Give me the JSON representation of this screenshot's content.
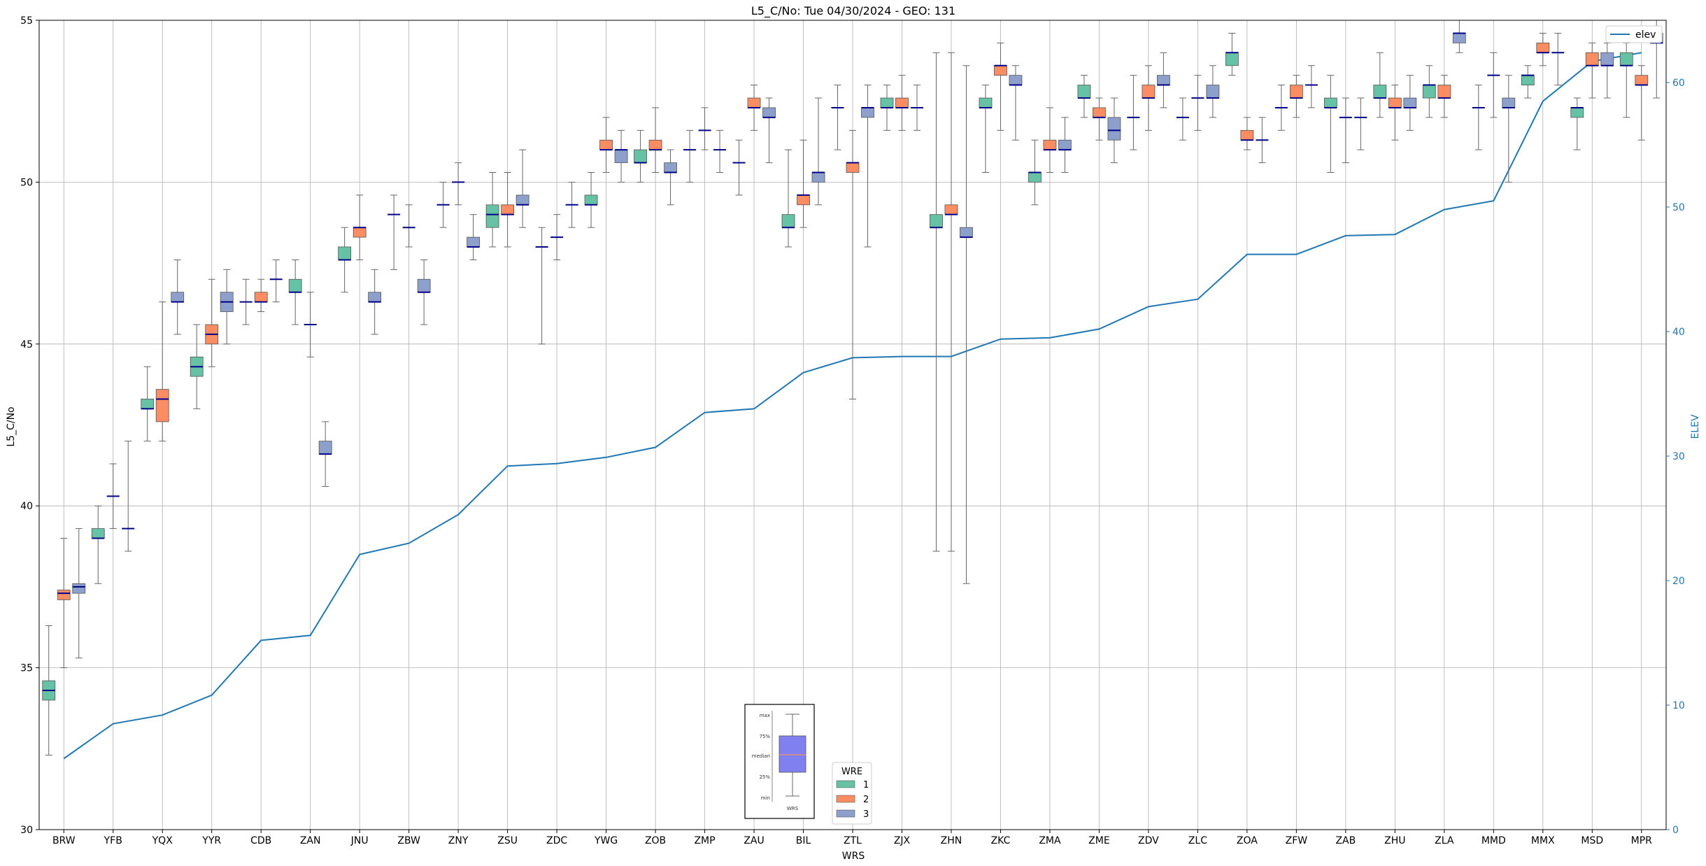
{
  "chart_data": {
    "type": "box",
    "title": "L5_C/No: Tue 04/30/2024 - GEO: 131",
    "xlabel": "WRS",
    "ylabel": "L5_C/No",
    "ylabel_right": "ELEV",
    "ylim": [
      30,
      55
    ],
    "ylim_right": [
      0,
      65
    ],
    "yticks": [
      "30",
      "35",
      "40",
      "45",
      "50",
      "55"
    ],
    "yticks_right": [
      "0",
      "10",
      "20",
      "30",
      "40",
      "50",
      "60"
    ],
    "grid": true,
    "categories": [
      "BRW",
      "YFB",
      "YQX",
      "YYR",
      "CDB",
      "ZAN",
      "JNU",
      "ZBW",
      "ZNY",
      "ZSU",
      "ZDC",
      "YWG",
      "ZOB",
      "ZMP",
      "ZAU",
      "BIL",
      "ZTL",
      "ZJX",
      "ZHN",
      "ZKC",
      "ZMA",
      "ZME",
      "ZDV",
      "ZLC",
      "ZOA",
      "ZFW",
      "ZAB",
      "ZHU",
      "ZLA",
      "MMD",
      "MMX",
      "MSD",
      "MPR"
    ],
    "wre_colors": {
      "1": "#66c2a5",
      "2": "#fc8d62",
      "3": "#8da0cb"
    },
    "legend": {
      "title": "WRE",
      "labels": [
        "1",
        "2",
        "3"
      ],
      "position": "bottom-center"
    },
    "legend_line": {
      "label": "elev",
      "position": "top-right"
    },
    "line_series": {
      "name": "elev",
      "color": "#1f77b4",
      "values": [
        5.7,
        8.5,
        9.2,
        10.8,
        15.2,
        15.6,
        22.1,
        23.0,
        25.3,
        29.2,
        29.4,
        29.9,
        30.7,
        33.5,
        33.8,
        36.7,
        37.9,
        38.0,
        38.0,
        39.4,
        39.5,
        40.2,
        42.0,
        42.6,
        46.2,
        46.2,
        47.7,
        47.8,
        49.8,
        50.5,
        58.5,
        61.7,
        62.4
      ]
    },
    "boxes": [
      {
        "wrs": "BRW",
        "wre": 1,
        "min": 32.3,
        "q1": 34.0,
        "median": 34.3,
        "q3": 34.6,
        "max": 36.3
      },
      {
        "wrs": "BRW",
        "wre": 2,
        "min": 35.0,
        "q1": 37.1,
        "median": 37.3,
        "q3": 37.4,
        "max": 39.0
      },
      {
        "wrs": "BRW",
        "wre": 3,
        "min": 35.3,
        "q1": 37.3,
        "median": 37.5,
        "q3": 37.6,
        "max": 39.3
      },
      {
        "wrs": "YFB",
        "wre": 1,
        "min": 37.6,
        "q1": 39.0,
        "median": 39.0,
        "q3": 39.3,
        "max": 40.0
      },
      {
        "wrs": "YFB",
        "wre": 2,
        "min": 39.3,
        "q1": 40.3,
        "median": 40.3,
        "q3": 40.3,
        "max": 41.3
      },
      {
        "wrs": "YFB",
        "wre": 3,
        "min": 38.6,
        "q1": 39.3,
        "median": 39.3,
        "q3": 39.3,
        "max": 42.0
      },
      {
        "wrs": "YQX",
        "wre": 1,
        "min": 42.0,
        "q1": 43.0,
        "median": 43.0,
        "q3": 43.3,
        "max": 44.3
      },
      {
        "wrs": "YQX",
        "wre": 2,
        "min": 42.0,
        "q1": 42.6,
        "median": 43.3,
        "q3": 43.6,
        "max": 46.3
      },
      {
        "wrs": "YQX",
        "wre": 3,
        "min": 45.3,
        "q1": 46.3,
        "median": 46.3,
        "q3": 46.6,
        "max": 47.6
      },
      {
        "wrs": "YYR",
        "wre": 1,
        "min": 43.0,
        "q1": 44.0,
        "median": 44.3,
        "q3": 44.6,
        "max": 45.6
      },
      {
        "wrs": "YYR",
        "wre": 2,
        "min": 44.3,
        "q1": 45.0,
        "median": 45.3,
        "q3": 45.6,
        "max": 47.0
      },
      {
        "wrs": "YYR",
        "wre": 3,
        "min": 45.0,
        "q1": 46.0,
        "median": 46.3,
        "q3": 46.6,
        "max": 47.3
      },
      {
        "wrs": "CDB",
        "wre": 1,
        "min": 45.6,
        "q1": 46.3,
        "median": 46.3,
        "q3": 46.3,
        "max": 47.0
      },
      {
        "wrs": "CDB",
        "wre": 2,
        "min": 46.0,
        "q1": 46.3,
        "median": 46.3,
        "q3": 46.6,
        "max": 47.0
      },
      {
        "wrs": "CDB",
        "wre": 3,
        "min": 46.3,
        "q1": 47.0,
        "median": 47.0,
        "q3": 47.0,
        "max": 47.6
      },
      {
        "wrs": "ZAN",
        "wre": 1,
        "min": 45.6,
        "q1": 46.6,
        "median": 46.6,
        "q3": 47.0,
        "max": 47.6
      },
      {
        "wrs": "ZAN",
        "wre": 2,
        "min": 44.6,
        "q1": 45.6,
        "median": 45.6,
        "q3": 45.6,
        "max": 46.6
      },
      {
        "wrs": "ZAN",
        "wre": 3,
        "min": 40.6,
        "q1": 41.6,
        "median": 41.6,
        "q3": 42.0,
        "max": 42.6
      },
      {
        "wrs": "JNU",
        "wre": 1,
        "min": 46.6,
        "q1": 47.6,
        "median": 47.6,
        "q3": 48.0,
        "max": 48.6
      },
      {
        "wrs": "JNU",
        "wre": 2,
        "min": 47.6,
        "q1": 48.3,
        "median": 48.6,
        "q3": 48.6,
        "max": 49.6
      },
      {
        "wrs": "JNU",
        "wre": 3,
        "min": 45.3,
        "q1": 46.3,
        "median": 46.3,
        "q3": 46.6,
        "max": 47.3
      },
      {
        "wrs": "ZBW",
        "wre": 1,
        "min": 47.3,
        "q1": 49.0,
        "median": 49.0,
        "q3": 49.0,
        "max": 49.6
      },
      {
        "wrs": "ZBW",
        "wre": 2,
        "min": 48.0,
        "q1": 48.6,
        "median": 48.6,
        "q3": 48.6,
        "max": 49.3
      },
      {
        "wrs": "ZBW",
        "wre": 3,
        "min": 45.6,
        "q1": 46.6,
        "median": 46.6,
        "q3": 47.0,
        "max": 47.6
      },
      {
        "wrs": "ZNY",
        "wre": 1,
        "min": 48.6,
        "q1": 49.3,
        "median": 49.3,
        "q3": 49.3,
        "max": 50.0
      },
      {
        "wrs": "ZNY",
        "wre": 2,
        "min": 49.3,
        "q1": 50.0,
        "median": 50.0,
        "q3": 50.0,
        "max": 50.6
      },
      {
        "wrs": "ZNY",
        "wre": 3,
        "min": 47.6,
        "q1": 48.0,
        "median": 48.0,
        "q3": 48.3,
        "max": 49.0
      },
      {
        "wrs": "ZSU",
        "wre": 1,
        "min": 48.0,
        "q1": 48.6,
        "median": 49.0,
        "q3": 49.3,
        "max": 50.3
      },
      {
        "wrs": "ZSU",
        "wre": 2,
        "min": 48.0,
        "q1": 49.0,
        "median": 49.0,
        "q3": 49.3,
        "max": 50.3
      },
      {
        "wrs": "ZSU",
        "wre": 3,
        "min": 48.6,
        "q1": 49.3,
        "median": 49.3,
        "q3": 49.6,
        "max": 51.0
      },
      {
        "wrs": "ZDC",
        "wre": 1,
        "min": 45.0,
        "q1": 48.0,
        "median": 48.0,
        "q3": 48.0,
        "max": 48.6
      },
      {
        "wrs": "ZDC",
        "wre": 2,
        "min": 47.6,
        "q1": 48.3,
        "median": 48.3,
        "q3": 48.3,
        "max": 49.0
      },
      {
        "wrs": "ZDC",
        "wre": 3,
        "min": 48.6,
        "q1": 49.3,
        "median": 49.3,
        "q3": 49.3,
        "max": 50.0
      },
      {
        "wrs": "YWG",
        "wre": 1,
        "min": 48.6,
        "q1": 49.3,
        "median": 49.3,
        "q3": 49.6,
        "max": 50.3
      },
      {
        "wrs": "YWG",
        "wre": 2,
        "min": 50.3,
        "q1": 51.0,
        "median": 51.0,
        "q3": 51.3,
        "max": 52.0
      },
      {
        "wrs": "YWG",
        "wre": 3,
        "min": 50.0,
        "q1": 50.6,
        "median": 51.0,
        "q3": 51.0,
        "max": 51.6
      },
      {
        "wrs": "ZOB",
        "wre": 1,
        "min": 50.0,
        "q1": 50.6,
        "median": 50.6,
        "q3": 51.0,
        "max": 51.6
      },
      {
        "wrs": "ZOB",
        "wre": 2,
        "min": 50.3,
        "q1": 51.0,
        "median": 51.0,
        "q3": 51.3,
        "max": 52.3
      },
      {
        "wrs": "ZOB",
        "wre": 3,
        "min": 49.3,
        "q1": 50.3,
        "median": 50.3,
        "q3": 50.6,
        "max": 51.0
      },
      {
        "wrs": "ZMP",
        "wre": 1,
        "min": 50.0,
        "q1": 51.0,
        "median": 51.0,
        "q3": 51.0,
        "max": 51.6
      },
      {
        "wrs": "ZMP",
        "wre": 2,
        "min": 51.0,
        "q1": 51.6,
        "median": 51.6,
        "q3": 51.6,
        "max": 52.3
      },
      {
        "wrs": "ZMP",
        "wre": 3,
        "min": 50.3,
        "q1": 51.0,
        "median": 51.0,
        "q3": 51.0,
        "max": 51.6
      },
      {
        "wrs": "ZAU",
        "wre": 1,
        "min": 49.6,
        "q1": 50.6,
        "median": 50.6,
        "q3": 50.6,
        "max": 51.3
      },
      {
        "wrs": "ZAU",
        "wre": 2,
        "min": 51.6,
        "q1": 52.3,
        "median": 52.3,
        "q3": 52.6,
        "max": 53.0
      },
      {
        "wrs": "ZAU",
        "wre": 3,
        "min": 50.6,
        "q1": 52.0,
        "median": 52.0,
        "q3": 52.3,
        "max": 52.6
      },
      {
        "wrs": "BIL",
        "wre": 1,
        "min": 48.0,
        "q1": 48.6,
        "median": 48.6,
        "q3": 49.0,
        "max": 51.0
      },
      {
        "wrs": "BIL",
        "wre": 2,
        "min": 48.6,
        "q1": 49.3,
        "median": 49.6,
        "q3": 49.6,
        "max": 51.3
      },
      {
        "wrs": "BIL",
        "wre": 3,
        "min": 49.3,
        "q1": 50.0,
        "median": 50.3,
        "q3": 50.3,
        "max": 52.6
      },
      {
        "wrs": "ZTL",
        "wre": 1,
        "min": 51.0,
        "q1": 52.3,
        "median": 52.3,
        "q3": 52.3,
        "max": 53.0
      },
      {
        "wrs": "ZTL",
        "wre": 2,
        "min": 43.3,
        "q1": 50.3,
        "median": 50.6,
        "q3": 50.6,
        "max": 51.6
      },
      {
        "wrs": "ZTL",
        "wre": 3,
        "min": 48.0,
        "q1": 52.0,
        "median": 52.3,
        "q3": 52.3,
        "max": 53.0
      },
      {
        "wrs": "ZJX",
        "wre": 1,
        "min": 51.6,
        "q1": 52.3,
        "median": 52.3,
        "q3": 52.6,
        "max": 53.0
      },
      {
        "wrs": "ZJX",
        "wre": 2,
        "min": 51.6,
        "q1": 52.3,
        "median": 52.3,
        "q3": 52.6,
        "max": 53.3
      },
      {
        "wrs": "ZJX",
        "wre": 3,
        "min": 51.6,
        "q1": 52.3,
        "median": 52.3,
        "q3": 52.3,
        "max": 53.0
      },
      {
        "wrs": "ZHN",
        "wre": 1,
        "min": 38.6,
        "q1": 48.6,
        "median": 48.6,
        "q3": 49.0,
        "max": 54.0
      },
      {
        "wrs": "ZHN",
        "wre": 2,
        "min": 38.6,
        "q1": 49.0,
        "median": 49.0,
        "q3": 49.3,
        "max": 54.0
      },
      {
        "wrs": "ZHN",
        "wre": 3,
        "min": 37.6,
        "q1": 48.3,
        "median": 48.3,
        "q3": 48.6,
        "max": 53.6
      },
      {
        "wrs": "ZKC",
        "wre": 1,
        "min": 50.3,
        "q1": 52.3,
        "median": 52.3,
        "q3": 52.6,
        "max": 53.0
      },
      {
        "wrs": "ZKC",
        "wre": 2,
        "min": 51.6,
        "q1": 53.3,
        "median": 53.6,
        "q3": 53.6,
        "max": 54.3
      },
      {
        "wrs": "ZKC",
        "wre": 3,
        "min": 51.3,
        "q1": 53.0,
        "median": 53.0,
        "q3": 53.3,
        "max": 53.6
      },
      {
        "wrs": "ZMA",
        "wre": 1,
        "min": 49.3,
        "q1": 50.0,
        "median": 50.3,
        "q3": 50.3,
        "max": 51.3
      },
      {
        "wrs": "ZMA",
        "wre": 2,
        "min": 50.3,
        "q1": 51.0,
        "median": 51.0,
        "q3": 51.3,
        "max": 52.3
      },
      {
        "wrs": "ZMA",
        "wre": 3,
        "min": 50.3,
        "q1": 51.0,
        "median": 51.0,
        "q3": 51.3,
        "max": 52.0
      },
      {
        "wrs": "ZME",
        "wre": 1,
        "min": 52.0,
        "q1": 52.6,
        "median": 52.6,
        "q3": 53.0,
        "max": 53.3
      },
      {
        "wrs": "ZME",
        "wre": 2,
        "min": 51.3,
        "q1": 52.0,
        "median": 52.0,
        "q3": 52.3,
        "max": 52.6
      },
      {
        "wrs": "ZME",
        "wre": 3,
        "min": 50.6,
        "q1": 51.3,
        "median": 51.6,
        "q3": 52.0,
        "max": 52.6
      },
      {
        "wrs": "ZDV",
        "wre": 1,
        "min": 51.0,
        "q1": 52.0,
        "median": 52.0,
        "q3": 52.0,
        "max": 53.3
      },
      {
        "wrs": "ZDV",
        "wre": 2,
        "min": 51.6,
        "q1": 52.6,
        "median": 52.6,
        "q3": 53.0,
        "max": 53.6
      },
      {
        "wrs": "ZDV",
        "wre": 3,
        "min": 52.3,
        "q1": 53.0,
        "median": 53.0,
        "q3": 53.3,
        "max": 54.0
      },
      {
        "wrs": "ZLC",
        "wre": 1,
        "min": 51.3,
        "q1": 52.0,
        "median": 52.0,
        "q3": 52.0,
        "max": 52.6
      },
      {
        "wrs": "ZLC",
        "wre": 2,
        "min": 51.6,
        "q1": 52.6,
        "median": 52.6,
        "q3": 52.6,
        "max": 53.3
      },
      {
        "wrs": "ZLC",
        "wre": 3,
        "min": 52.0,
        "q1": 52.6,
        "median": 52.6,
        "q3": 53.0,
        "max": 53.6
      },
      {
        "wrs": "ZOA",
        "wre": 1,
        "min": 53.3,
        "q1": 53.6,
        "median": 54.0,
        "q3": 54.0,
        "max": 54.6
      },
      {
        "wrs": "ZOA",
        "wre": 2,
        "min": 51.0,
        "q1": 51.3,
        "median": 51.3,
        "q3": 51.6,
        "max": 52.0
      },
      {
        "wrs": "ZOA",
        "wre": 3,
        "min": 50.6,
        "q1": 51.3,
        "median": 51.3,
        "q3": 51.3,
        "max": 52.0
      },
      {
        "wrs": "ZFW",
        "wre": 1,
        "min": 51.6,
        "q1": 52.3,
        "median": 52.3,
        "q3": 52.3,
        "max": 53.0
      },
      {
        "wrs": "ZFW",
        "wre": 2,
        "min": 52.0,
        "q1": 52.6,
        "median": 52.6,
        "q3": 53.0,
        "max": 53.3
      },
      {
        "wrs": "ZFW",
        "wre": 3,
        "min": 52.3,
        "q1": 53.0,
        "median": 53.0,
        "q3": 53.0,
        "max": 53.6
      },
      {
        "wrs": "ZAB",
        "wre": 1,
        "min": 50.3,
        "q1": 52.3,
        "median": 52.3,
        "q3": 52.6,
        "max": 53.3
      },
      {
        "wrs": "ZAB",
        "wre": 2,
        "min": 50.6,
        "q1": 52.0,
        "median": 52.0,
        "q3": 52.0,
        "max": 52.6
      },
      {
        "wrs": "ZAB",
        "wre": 3,
        "min": 51.0,
        "q1": 52.0,
        "median": 52.0,
        "q3": 52.0,
        "max": 52.6
      },
      {
        "wrs": "ZHU",
        "wre": 1,
        "min": 52.0,
        "q1": 52.6,
        "median": 52.6,
        "q3": 53.0,
        "max": 54.0
      },
      {
        "wrs": "ZHU",
        "wre": 2,
        "min": 51.3,
        "q1": 52.3,
        "median": 52.3,
        "q3": 52.6,
        "max": 53.0
      },
      {
        "wrs": "ZHU",
        "wre": 3,
        "min": 51.6,
        "q1": 52.3,
        "median": 52.3,
        "q3": 52.6,
        "max": 53.3
      },
      {
        "wrs": "ZLA",
        "wre": 1,
        "min": 52.0,
        "q1": 52.6,
        "median": 53.0,
        "q3": 53.0,
        "max": 53.6
      },
      {
        "wrs": "ZLA",
        "wre": 2,
        "min": 52.0,
        "q1": 52.6,
        "median": 52.6,
        "q3": 53.0,
        "max": 53.3
      },
      {
        "wrs": "ZLA",
        "wre": 3,
        "min": 54.0,
        "q1": 54.3,
        "median": 54.6,
        "q3": 54.6,
        "max": 55.0
      },
      {
        "wrs": "MMD",
        "wre": 1,
        "min": 51.0,
        "q1": 52.3,
        "median": 52.3,
        "q3": 52.3,
        "max": 53.0
      },
      {
        "wrs": "MMD",
        "wre": 2,
        "min": 52.0,
        "q1": 53.3,
        "median": 53.3,
        "q3": 53.3,
        "max": 54.0
      },
      {
        "wrs": "MMD",
        "wre": 3,
        "min": 50.0,
        "q1": 52.3,
        "median": 52.3,
        "q3": 52.6,
        "max": 53.3
      },
      {
        "wrs": "MMX",
        "wre": 1,
        "min": 52.6,
        "q1": 53.0,
        "median": 53.3,
        "q3": 53.3,
        "max": 53.6
      },
      {
        "wrs": "MMX",
        "wre": 2,
        "min": 53.6,
        "q1": 54.0,
        "median": 54.0,
        "q3": 54.3,
        "max": 54.6
      },
      {
        "wrs": "MMX",
        "wre": 3,
        "min": 53.0,
        "q1": 54.0,
        "median": 54.0,
        "q3": 54.0,
        "max": 54.6
      },
      {
        "wrs": "MSD",
        "wre": 1,
        "min": 51.0,
        "q1": 52.0,
        "median": 52.3,
        "q3": 52.3,
        "max": 52.6
      },
      {
        "wrs": "MSD",
        "wre": 2,
        "min": 52.6,
        "q1": 53.6,
        "median": 53.6,
        "q3": 54.0,
        "max": 54.3
      },
      {
        "wrs": "MSD",
        "wre": 3,
        "min": 52.6,
        "q1": 53.6,
        "median": 53.6,
        "q3": 54.0,
        "max": 54.3
      },
      {
        "wrs": "MPR",
        "wre": 1,
        "min": 52.0,
        "q1": 53.6,
        "median": 53.6,
        "q3": 54.0,
        "max": 54.3
      },
      {
        "wrs": "MPR",
        "wre": 2,
        "min": 51.3,
        "q1": 53.0,
        "median": 53.0,
        "q3": 53.3,
        "max": 53.6
      },
      {
        "wrs": "MPR",
        "wre": 3,
        "min": 52.6,
        "q1": 54.3,
        "median": 54.3,
        "q3": 54.6,
        "max": 55.0
      }
    ],
    "inset_key": {
      "labels": [
        "max",
        "75%",
        "median",
        "25%",
        "min"
      ],
      "xlabel": "WRS",
      "fill": "#8080f0",
      "median_color": "#e09080"
    }
  }
}
